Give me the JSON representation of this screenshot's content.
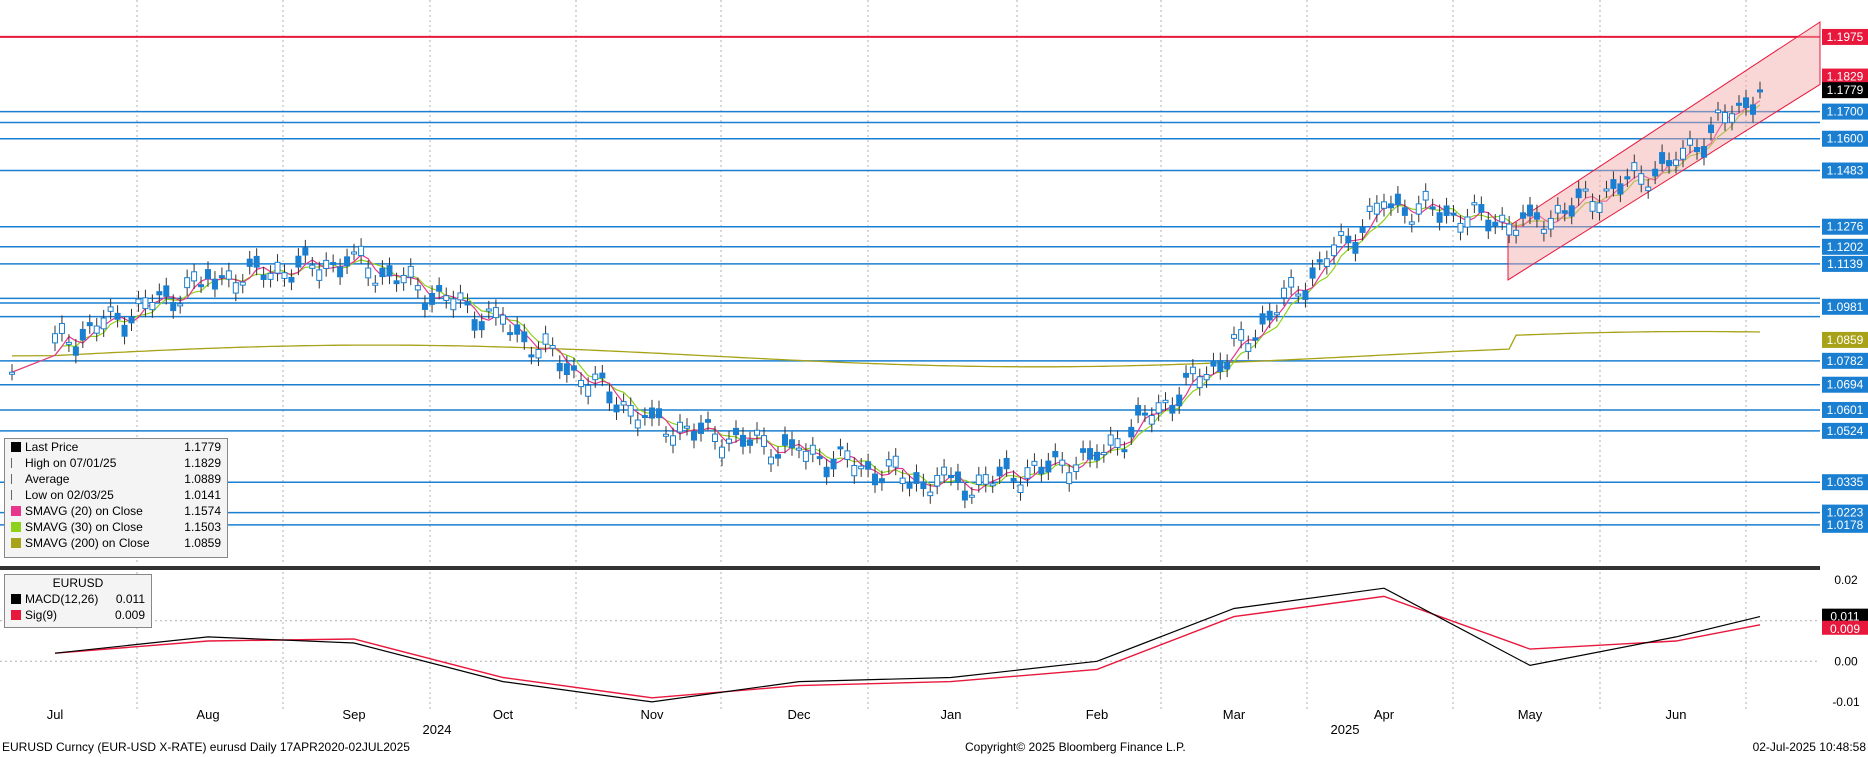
{
  "chart_data": [
    {
      "type": "candlestick",
      "title": "EURUSD Curncy (EUR-USD X-RATE) eurusd  Daily 17APR2020-02JUL2025",
      "price_ylim": [
        1.003,
        1.203
      ],
      "x_month_labels": [
        "Jul",
        "Aug",
        "Sep",
        "Oct",
        "Nov",
        "Dec",
        "Jan",
        "Feb",
        "Mar",
        "Apr",
        "May",
        "Jun"
      ],
      "year_labels": [
        "2024",
        "2025"
      ],
      "price_axis_labels": [
        {
          "value": 1.1975,
          "label": "1.1975",
          "color": "#e8183c"
        },
        {
          "value": 1.1829,
          "label": "1.1829",
          "color": "#e8183c"
        },
        {
          "value": 1.1779,
          "label": "1.1779",
          "color": "#000000"
        },
        {
          "value": 1.17,
          "label": "1.1700",
          "color": "#1a7fd1"
        },
        {
          "value": 1.16,
          "label": "1.1600",
          "color": "#1a7fd1"
        },
        {
          "value": 1.1483,
          "label": "1.1483",
          "color": "#1a7fd1"
        },
        {
          "value": 1.1276,
          "label": "1.1276",
          "color": "#1a7fd1"
        },
        {
          "value": 1.1202,
          "label": "1.1202",
          "color": "#1a7fd1"
        },
        {
          "value": 1.1139,
          "label": "1.1139",
          "color": "#1a7fd1"
        },
        {
          "value": 1.0981,
          "label": "1.0981",
          "color": "#1a7fd1"
        },
        {
          "value": 1.0859,
          "label": "1.0859",
          "color": "#a8a218"
        },
        {
          "value": 1.0782,
          "label": "1.0782",
          "color": "#1a7fd1"
        },
        {
          "value": 1.0694,
          "label": "1.0694",
          "color": "#1a7fd1"
        },
        {
          "value": 1.0601,
          "label": "1.0601",
          "color": "#1a7fd1"
        },
        {
          "value": 1.0524,
          "label": "1.0524",
          "color": "#1a7fd1"
        },
        {
          "value": 1.0335,
          "label": "1.0335",
          "color": "#1a7fd1"
        },
        {
          "value": 1.0223,
          "label": "1.0223",
          "color": "#1a7fd1"
        },
        {
          "value": 1.0178,
          "label": "1.0178",
          "color": "#1a7fd1"
        }
      ],
      "horizontal_levels": [
        1.1975,
        1.17,
        1.166,
        1.16,
        1.1483,
        1.1276,
        1.1202,
        1.1139,
        1.1012,
        1.0995,
        1.0945,
        1.0782,
        1.0694,
        1.0601,
        1.0524,
        1.0335,
        1.0223,
        1.0178
      ],
      "monthly_path": [
        {
          "month": "Jul",
          "value": 1.084
        },
        {
          "month": "Aug",
          "value": 1.108
        },
        {
          "month": "Sep",
          "value": 1.115
        },
        {
          "month": "Oct",
          "value": 1.092
        },
        {
          "month": "Nov",
          "value": 1.055
        },
        {
          "month": "Dec",
          "value": 1.045
        },
        {
          "month": "Jan",
          "value": 1.031
        },
        {
          "month": "Feb",
          "value": 1.043
        },
        {
          "month": "Mar",
          "value": 1.082
        },
        {
          "month": "Apr",
          "value": 1.136
        },
        {
          "month": "May",
          "value": 1.128
        },
        {
          "month": "Jun",
          "value": 1.152
        },
        {
          "month": "end",
          "value": 1.1779
        }
      ],
      "series_colors": {
        "up": "#1a7fd1",
        "down": "#1a7fd1",
        "smavg20": "#e8368c",
        "smavg30": "#8fd11a",
        "smavg200": "#a8a218",
        "channel": "#f4a7a7",
        "resistance": "#e8183c"
      },
      "legend": [
        {
          "name": "Last Price",
          "value": "1.1779",
          "color": "#000000",
          "marker": "square"
        },
        {
          "name": "High on 07/01/25",
          "value": "1.1829",
          "color": "#666666",
          "marker": "high"
        },
        {
          "name": "Average",
          "value": "1.0889",
          "color": "#666666",
          "marker": "avg"
        },
        {
          "name": "Low on 02/03/25",
          "value": "1.0141",
          "color": "#666666",
          "marker": "low"
        },
        {
          "name": "SMAVG (20)  on Close",
          "value": "1.1574",
          "color": "#e8368c",
          "marker": "square"
        },
        {
          "name": "SMAVG (30)  on Close",
          "value": "1.1503",
          "color": "#8fd11a",
          "marker": "square"
        },
        {
          "name": "SMAVG (200)  on Close",
          "value": "1.0859",
          "color": "#a8a218",
          "marker": "square"
        }
      ]
    },
    {
      "type": "line",
      "title": "EURUSD",
      "ylim": [
        -0.012,
        0.022
      ],
      "y_ticks": [
        "0.02",
        "0.00",
        "-0.01"
      ],
      "series": [
        {
          "name": "MACD(12,26)",
          "value": "0.011",
          "color": "#000000"
        },
        {
          "name": "Sig(9)",
          "value": "0.009",
          "color": "#e8183c"
        }
      ],
      "macd_monthly": [
        {
          "month": "Jul",
          "macd": 0.002,
          "sig": 0.002
        },
        {
          "month": "Aug",
          "macd": 0.006,
          "sig": 0.005
        },
        {
          "month": "Sep",
          "macd": 0.0045,
          "sig": 0.0055
        },
        {
          "month": "Oct",
          "macd": -0.005,
          "sig": -0.004
        },
        {
          "month": "Nov",
          "macd": -0.01,
          "sig": -0.009
        },
        {
          "month": "Dec",
          "macd": -0.005,
          "sig": -0.006
        },
        {
          "month": "Jan",
          "macd": -0.004,
          "sig": -0.005
        },
        {
          "month": "Feb",
          "macd": 0.0,
          "sig": -0.002
        },
        {
          "month": "Mar",
          "macd": 0.013,
          "sig": 0.011
        },
        {
          "month": "Apr",
          "macd": 0.018,
          "sig": 0.016
        },
        {
          "month": "May",
          "macd": -0.001,
          "sig": 0.003
        },
        {
          "month": "Jun",
          "macd": 0.006,
          "sig": 0.005
        },
        {
          "month": "end",
          "macd": 0.011,
          "sig": 0.009
        }
      ]
    }
  ],
  "legend_title": "EURUSD",
  "footer": {
    "left": "EURUSD Curncy (EUR-USD X-RATE) eurusd  Daily 17APR2020-02JUL2025",
    "center": "Copyright© 2025 Bloomberg Finance L.P.",
    "right": "02-Jul-2025 10:48:58"
  },
  "macd_tags": [
    {
      "label": "0.011",
      "color": "#000000"
    },
    {
      "label": "0.009",
      "color": "#e8183c"
    }
  ]
}
